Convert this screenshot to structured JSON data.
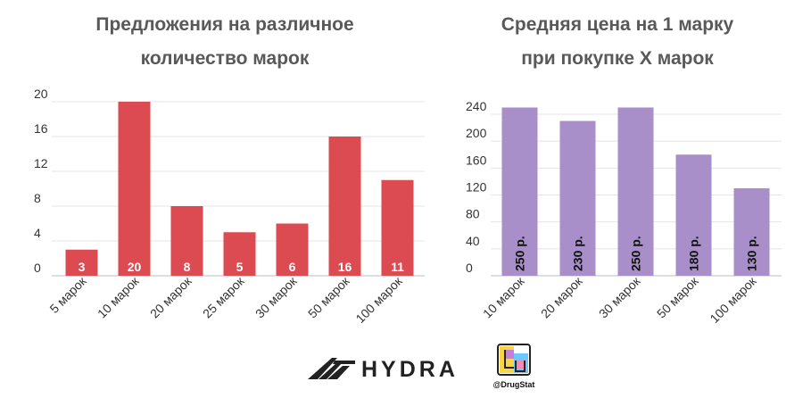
{
  "chart_data": [
    {
      "type": "bar",
      "title_lines": [
        "Предложения на различное",
        "количество марок"
      ],
      "categories": [
        "5 марок",
        "10 марок",
        "20 марок",
        "25 марок",
        "30 марок",
        "50 марок",
        "100 марок"
      ],
      "values": [
        3,
        20,
        8,
        5,
        6,
        16,
        11
      ],
      "value_labels": [
        "3",
        "20",
        "8",
        "5",
        "6",
        "16",
        "11"
      ],
      "yticks": [
        "0",
        "4",
        "8",
        "12",
        "16",
        "20"
      ],
      "ylim": [
        0,
        20
      ],
      "color": "#dc4b52",
      "xlabel": "",
      "ylabel": ""
    },
    {
      "type": "bar",
      "title_lines": [
        "Средняя цена на 1 марку",
        "при покупке X марок"
      ],
      "categories": [
        "10 марок",
        "20 марок",
        "30 марок",
        "50 марок",
        "100 марок"
      ],
      "values": [
        250,
        230,
        250,
        180,
        130
      ],
      "value_labels": [
        "250 р.",
        "230 р.",
        "250 р.",
        "180 р.",
        "130 р."
      ],
      "yticks": [
        "0",
        "40",
        "80",
        "120",
        "160",
        "200",
        "240"
      ],
      "ylim": [
        0,
        240
      ],
      "color": "#a98fca",
      "xlabel": "",
      "ylabel": ""
    }
  ],
  "footer": {
    "brand": "HYDRA",
    "handle": "@DrugStat",
    "brand_icon": "hydra-logo-icon",
    "handle_icon": "drugstat-logo-icon"
  }
}
